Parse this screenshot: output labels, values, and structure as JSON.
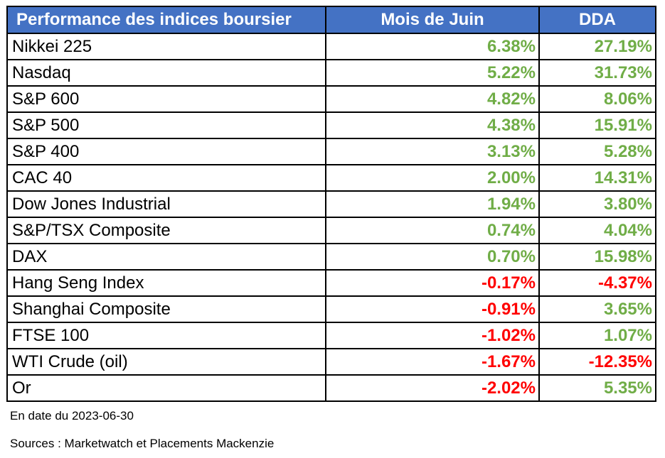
{
  "chart_data": {
    "type": "table",
    "columns": [
      "Performance des indices boursier",
      "Mois de Juin",
      "DDA"
    ],
    "rows": [
      {
        "name": "Nikkei 225",
        "june": "6.38%",
        "ytd": "27.19%"
      },
      {
        "name": "Nasdaq",
        "june": "5.22%",
        "ytd": "31.73%"
      },
      {
        "name": "S&P 600",
        "june": "4.82%",
        "ytd": "8.06%"
      },
      {
        "name": "S&P 500",
        "june": "4.38%",
        "ytd": "15.91%"
      },
      {
        "name": "S&P 400",
        "june": "3.13%",
        "ytd": "5.28%"
      },
      {
        "name": "CAC 40",
        "june": "2.00%",
        "ytd": "14.31%"
      },
      {
        "name": "Dow Jones Industrial",
        "june": "1.94%",
        "ytd": "3.80%"
      },
      {
        "name": "S&P/TSX Composite",
        "june": "0.74%",
        "ytd": "4.04%"
      },
      {
        "name": "DAX",
        "june": "0.70%",
        "ytd": "15.98%"
      },
      {
        "name": "Hang Seng Index",
        "june": "-0.17%",
        "ytd": "-4.37%"
      },
      {
        "name": "Shanghai Composite",
        "june": "-0.91%",
        "ytd": "3.65%"
      },
      {
        "name": "FTSE 100",
        "june": "-1.02%",
        "ytd": "1.07%"
      },
      {
        "name": "WTI Crude (oil)",
        "june": "-1.67%",
        "ytd": "-12.35%"
      },
      {
        "name": "Or",
        "june": "-2.02%",
        "ytd": "5.35%"
      }
    ],
    "colors": {
      "header_bg": "#4472c4",
      "header_text": "#ffffff",
      "positive": "#70ad47",
      "negative": "#ff0000",
      "border": "#000000"
    }
  },
  "footer": {
    "date_note": "En date du 2023-06-30",
    "source_note": "Sources : Marketwatch et Placements Mackenzie"
  }
}
